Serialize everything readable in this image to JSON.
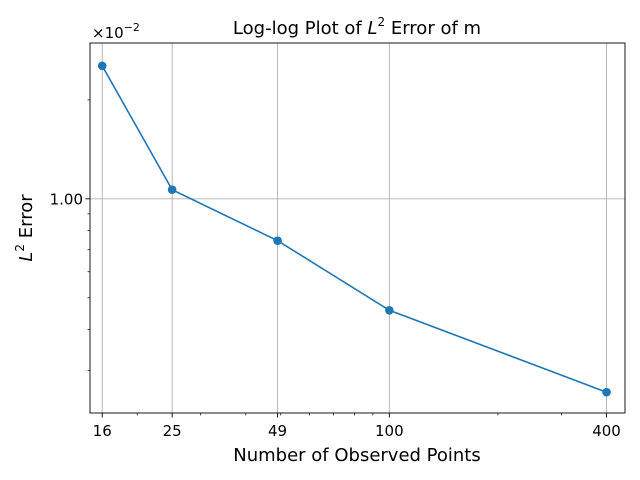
{
  "chart_data": {
    "type": "line",
    "title_prefix": "Log-log Plot of ",
    "title_sup_base": "L",
    "title_sup_exp": "2",
    "title_suffix": " Error of m",
    "xlabel": "Number of Observed Points",
    "ylabel_base": "L",
    "ylabel_exp": "2",
    "ylabel_suffix": " Error",
    "x_scale": "log",
    "y_scale": "log",
    "y_multiplier_text": "×10",
    "y_multiplier_exp": "−2",
    "x": [
      16,
      25,
      49,
      100,
      400
    ],
    "y": [
      0.0254,
      0.01066,
      0.00746,
      0.00458,
      0.00258
    ],
    "xlim": [
      14.8,
      450
    ],
    "ylim": [
      0.00223,
      0.0298
    ],
    "x_ticks": [
      16,
      25,
      49,
      100,
      400
    ],
    "x_tick_labels": [
      "16",
      "25",
      "49",
      "100",
      "400"
    ],
    "y_major_ticks": [
      0.01
    ],
    "y_major_tick_labels": [
      "1.00"
    ],
    "y_minor_ticks": [
      0.003,
      0.004,
      0.005,
      0.006,
      0.007,
      0.008,
      0.009,
      0.02
    ],
    "x_minor_ticks": [
      20,
      30,
      40,
      50,
      60,
      70,
      80,
      90,
      200,
      300
    ],
    "grid": true,
    "line_color": "#1f77b4",
    "grid_color": "#b0b0b0",
    "marker": "circle"
  }
}
